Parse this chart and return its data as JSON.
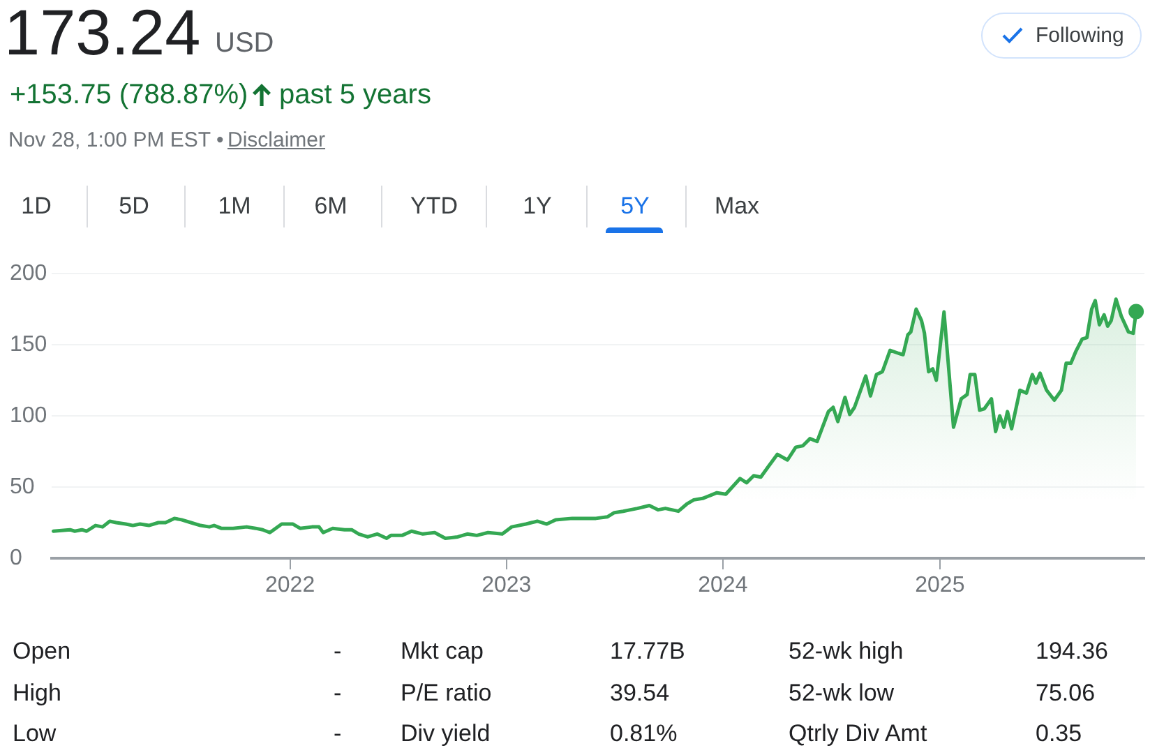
{
  "chart_data": {
    "type": "area",
    "title": "173.24",
    "annotations": [
      "USD",
      "+153.75 (788.87%)",
      "past 5 years",
      "Nov 28, 1:00 PM EST •",
      "Disclaimer",
      "Following",
      "1D",
      "5D",
      "1M",
      "6M",
      "YTD",
      "1Y",
      "5Y",
      "Max",
      "Open",
      "-",
      "Mkt cap",
      "17.77B",
      "52-wk high",
      "194.36",
      "High",
      "-",
      "P/E ratio",
      "39.54",
      "52-wk low",
      "75.06",
      "Low",
      "-",
      "Div yield",
      "0.81%",
      "Qtrly Div Amt",
      "0.35"
    ],
    "x": [
      "2020-11-28",
      "2020-12-26",
      "2021-01-03",
      "2021-01-15",
      "2021-01-23",
      "2021-02-07",
      "2021-02-19",
      "2021-03-03",
      "2021-03-14",
      "2021-03-30",
      "2021-04-11",
      "2021-04-23",
      "2021-05-08",
      "2021-05-24",
      "2021-06-05",
      "2021-06-20",
      "2021-07-02",
      "2021-07-18",
      "2021-08-03",
      "2021-08-18",
      "2021-08-26",
      "2021-09-07",
      "2021-09-27",
      "2021-10-20",
      "2021-11-04",
      "2021-11-16",
      "2021-11-28",
      "2021-12-18",
      "2022-01-06",
      "2022-01-18",
      "2022-02-07",
      "2022-02-19",
      "2022-02-26",
      "2022-03-14",
      "2022-04-03",
      "2022-04-15",
      "2022-04-27",
      "2022-05-12",
      "2022-05-28",
      "2022-06-13",
      "2022-06-20",
      "2022-07-09",
      "2022-07-25",
      "2022-08-13",
      "2022-09-02",
      "2022-09-20",
      "2022-10-11",
      "2022-10-27",
      "2022-11-12",
      "2022-12-01",
      "2022-12-25",
      "2023-01-10",
      "2023-02-03",
      "2023-02-22",
      "2023-03-10",
      "2023-03-25",
      "2023-04-22",
      "2023-05-16",
      "2023-06-01",
      "2023-06-20",
      "2023-07-02",
      "2023-07-17",
      "2023-07-29",
      "2023-08-10",
      "2023-08-30",
      "2023-09-14",
      "2023-09-26",
      "2023-10-18",
      "2023-11-01",
      "2023-11-13",
      "2023-11-28",
      "2023-12-22",
      "2024-01-06",
      "2024-01-30",
      "2024-02-10",
      "2024-02-22",
      "2024-03-05",
      "2024-03-17",
      "2024-04-02",
      "2024-04-19",
      "2024-05-03",
      "2024-05-15",
      "2024-05-27",
      "2024-06-08",
      "2024-06-27",
      "2024-07-05",
      "2024-07-13",
      "2024-07-25",
      "2024-08-02",
      "2024-08-10",
      "2024-08-29",
      "2024-09-06",
      "2024-09-16",
      "2024-09-26",
      "2024-10-09",
      "2024-10-23",
      "2024-10-31",
      "2024-11-08",
      "2024-11-13",
      "2024-11-22",
      "2024-12-01",
      "2024-12-06",
      "2024-12-13",
      "2024-12-20",
      "2024-12-26",
      "2025-01-08",
      "2025-01-24",
      "2025-02-06",
      "2025-02-16",
      "2025-02-21",
      "2025-03-01",
      "2025-03-09",
      "2025-03-17",
      "2025-03-29",
      "2025-04-05",
      "2025-04-12",
      "2025-04-19",
      "2025-04-25",
      "2025-05-02",
      "2025-05-16",
      "2025-05-27",
      "2025-06-06",
      "2025-06-12",
      "2025-06-19",
      "2025-06-30",
      "2025-07-13",
      "2025-07-25",
      "2025-08-02",
      "2025-08-10",
      "2025-08-18",
      "2025-08-29",
      "2025-09-06",
      "2025-09-14",
      "2025-09-20",
      "2025-09-27",
      "2025-10-05",
      "2025-10-11",
      "2025-10-17",
      "2025-10-25",
      "2025-11-03",
      "2025-11-15",
      "2025-11-23",
      "2025-11-28"
    ],
    "series": [
      {
        "color": "#34a853",
        "values": [
          19,
          20,
          19,
          20,
          19,
          23,
          22,
          26,
          25,
          24,
          23,
          24,
          23,
          25,
          25,
          28,
          27,
          25,
          23,
          22,
          23,
          21,
          21,
          22,
          21,
          20,
          18,
          24,
          24,
          21,
          22,
          22,
          18,
          21,
          20,
          20,
          17,
          15,
          17,
          14,
          16,
          16,
          19,
          17,
          18,
          14,
          15,
          17,
          16,
          18,
          17,
          22,
          24,
          26,
          24,
          27,
          28,
          28,
          28,
          29,
          32,
          33,
          34,
          35,
          37,
          34,
          35,
          33,
          38,
          41,
          42,
          46,
          45,
          56,
          53,
          58,
          57,
          64,
          73,
          69,
          78,
          79,
          84,
          82,
          103,
          106,
          96,
          113,
          101,
          106,
          128,
          114,
          129,
          131,
          146,
          144,
          143,
          157,
          159,
          175,
          167,
          158,
          131,
          133,
          125,
          173,
          92,
          112,
          115,
          129,
          129,
          104,
          105,
          112,
          89,
          100,
          92,
          103,
          91,
          118,
          116,
          129,
          123,
          130,
          118,
          111,
          118,
          137,
          137,
          145,
          154,
          155,
          175,
          181,
          164,
          171,
          163,
          167,
          182,
          170,
          159,
          158,
          173
        ]
      },
      {
        "type": "scatter",
        "color": "#34a853",
        "x": [
          "2025-11-28"
        ],
        "values": [
          173.24
        ]
      }
    ],
    "xlim": [
      "2020-11-25",
      "2025-12-12"
    ],
    "xticks": [
      "2022",
      "2023",
      "2024",
      "2025"
    ],
    "ylim": [
      0,
      200
    ],
    "yticks": [
      0,
      50,
      100,
      150,
      200
    ],
    "grid": "y"
  }
}
